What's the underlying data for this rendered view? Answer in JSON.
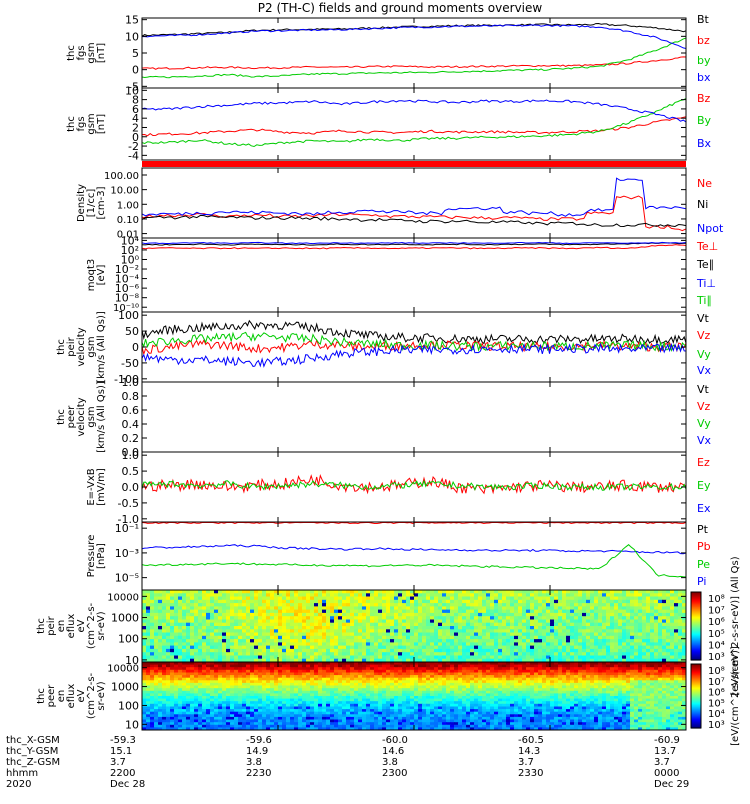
{
  "title": "P2 (TH-C) fields and ground moments overview",
  "panels": [
    {
      "id": "fgs_gsm",
      "ylabel": [
        "thc",
        "fgs",
        "gsm",
        "[nT]"
      ],
      "ticks": [
        "15",
        "10",
        "5",
        "0",
        "-5"
      ],
      "tick_values": [
        15,
        10,
        5,
        0,
        -5
      ],
      "ylim": [
        -5.5,
        15.5
      ],
      "scale": "linear",
      "legend": [
        {
          "label": "Bt",
          "color": "#000000"
        },
        {
          "label": "bz",
          "color": "#ff0000"
        },
        {
          "label": "by",
          "color": "#00cc00"
        },
        {
          "label": "bx",
          "color": "#0000ff"
        }
      ]
    },
    {
      "id": "fgs_gse",
      "ylabel": [
        "thc",
        "fgs",
        "gsm",
        "[nT]"
      ],
      "ticks": [
        "10",
        "8",
        "6",
        "4",
        "2",
        "0",
        "-2",
        "-4"
      ],
      "tick_values": [
        10,
        8,
        6,
        4,
        2,
        0,
        -2,
        -4
      ],
      "ylim": [
        -5,
        10.5
      ],
      "scale": "linear",
      "legend": [
        {
          "label": "Bz",
          "color": "#ff0000"
        },
        {
          "label": "By",
          "color": "#00cc00"
        },
        {
          "label": "Bx",
          "color": "#0000ff"
        }
      ]
    },
    {
      "id": "density",
      "ylabel": [
        "Density",
        "[1/cc]",
        "[cm-3]"
      ],
      "ticks": [
        "100.00",
        "10.00",
        "1.00",
        "0.10",
        "0.01"
      ],
      "tick_values": [
        100,
        10,
        1,
        0.1,
        0.01
      ],
      "ylim": [
        0.005,
        300
      ],
      "scale": "log",
      "legend": [
        {
          "label": "Ne",
          "color": "#ff0000"
        },
        {
          "label": "Ni",
          "color": "#000000"
        },
        {
          "label": "Npot",
          "color": "#0000ff"
        }
      ]
    },
    {
      "id": "temperature",
      "ylabel": [
        "moqt3",
        "[eV]"
      ],
      "ticks": [
        "10⁴",
        "10²",
        "10⁰",
        "10⁻²",
        "10⁻⁴",
        "10⁻⁶",
        "10⁻⁸",
        "10⁻¹⁰"
      ],
      "tick_values": [
        4,
        2,
        0,
        -2,
        -4,
        -6,
        -8,
        -10
      ],
      "ylim": [
        -11,
        4.5
      ],
      "scale": "log",
      "legend": [
        {
          "label": "Te⊥",
          "color": "#ff0000"
        },
        {
          "label": "Te∥",
          "color": "#000000"
        },
        {
          "label": "Ti⊥",
          "color": "#0000ff"
        },
        {
          "label": "Ti∥",
          "color": "#00cc00"
        }
      ]
    },
    {
      "id": "peir_velocity",
      "ylabel": [
        "thc",
        "peir",
        "velocity",
        "gsm",
        "[km/s (All Qs)]"
      ],
      "ticks": [
        "100",
        "50",
        "0",
        "-50",
        "-100"
      ],
      "tick_values": [
        100,
        50,
        0,
        -50,
        -100
      ],
      "ylim": [
        -110,
        110
      ],
      "scale": "linear",
      "legend": [
        {
          "label": "Vt",
          "color": "#000000"
        },
        {
          "label": "Vz",
          "color": "#ff0000"
        },
        {
          "label": "Vy",
          "color": "#00cc00"
        },
        {
          "label": "Vx",
          "color": "#0000ff"
        }
      ]
    },
    {
      "id": "peer_velocity",
      "ylabel": [
        "thc",
        "peer",
        "velocity",
        "gsm",
        "[km/s (All Qs)]"
      ],
      "ticks": [
        "1.0",
        "0.8",
        "0.6",
        "0.4",
        "0.2",
        "0.0"
      ],
      "tick_values": [
        1.0,
        0.8,
        0.6,
        0.4,
        0.2,
        0.0
      ],
      "ylim": [
        0,
        1.0
      ],
      "scale": "linear",
      "legend": [
        {
          "label": "Vt",
          "color": "#000000"
        },
        {
          "label": "Vz",
          "color": "#ff0000"
        },
        {
          "label": "Vy",
          "color": "#00cc00"
        },
        {
          "label": "Vx",
          "color": "#0000ff"
        }
      ]
    },
    {
      "id": "efield",
      "ylabel": [
        "E=-VxB",
        "[mV/m]"
      ],
      "ticks": [
        "1.0",
        "0.5",
        "0.0",
        "-0.5",
        "-1.0"
      ],
      "tick_values": [
        1.0,
        0.5,
        0.0,
        -0.5,
        -1.0
      ],
      "ylim": [
        -1.1,
        1.1
      ],
      "scale": "linear",
      "legend": [
        {
          "label": "Ez",
          "color": "#ff0000"
        },
        {
          "label": "Ey",
          "color": "#00cc00"
        },
        {
          "label": "Ex",
          "color": "#0000ff"
        }
      ]
    },
    {
      "id": "pressure",
      "ylabel": [
        "Pressure",
        "[nPa]"
      ],
      "ticks": [
        "10⁻¹",
        "10⁻³",
        "10⁻⁵"
      ],
      "tick_values": [
        -1,
        -3,
        -5
      ],
      "ylim": [
        -6,
        -0.5
      ],
      "scale": "log",
      "legend": [
        {
          "label": "Pt",
          "color": "#000000"
        },
        {
          "label": "Pb",
          "color": "#ff0000"
        },
        {
          "label": "Pe",
          "color": "#00cc00"
        },
        {
          "label": "Pi",
          "color": "#0000ff"
        }
      ]
    },
    {
      "id": "peir_eflux",
      "ylabel": [
        "thc",
        "peir",
        "en",
        "eflux",
        "eV",
        "(cm^2-s-",
        "sr-eV)"
      ],
      "ticks": [
        "10000",
        "1000",
        "100",
        "10"
      ],
      "tick_values": [
        4,
        3,
        2,
        1
      ],
      "ylim": [
        0.9,
        4.3
      ],
      "scale": "log"
    },
    {
      "id": "peer_eflux",
      "ylabel": [
        "thc",
        "peer",
        "en",
        "eflux",
        "eV",
        "(cm^2-s-",
        "sr-eV)"
      ],
      "ticks": [
        "10000",
        "1000",
        "100",
        "10"
      ],
      "tick_values": [
        4,
        3,
        2,
        1
      ],
      "ylim": [
        0.7,
        4.3
      ],
      "scale": "log"
    }
  ],
  "colorbar_top": {
    "ticks": [
      "10⁸",
      "10⁷",
      "10⁶",
      "10⁵",
      "10⁴",
      "10³"
    ],
    "label": "[eV/(cm^2-s-sr-eV)] (All Qs)"
  },
  "colorbar_bottom": {
    "ticks": [
      "10⁸",
      "10⁷",
      "10⁶",
      "10⁵",
      "10⁴",
      "10³"
    ],
    "label": "[eV/(cm^2-s-sr-eV)]"
  },
  "xaxis": {
    "row_labels": [
      "thc_X-GSM",
      "thc_Y-GSM",
      "thc_Z-GSM",
      "hhmm",
      "2020"
    ],
    "ticks": [
      {
        "x": "-59.3",
        "y": "15.1",
        "z": "3.7",
        "time": "2200",
        "date": "Dec 28"
      },
      {
        "x": "-59.6",
        "y": "14.9",
        "z": "3.8",
        "time": "2230",
        "date": ""
      },
      {
        "x": "-60.0",
        "y": "14.6",
        "z": "3.8",
        "time": "2300",
        "date": ""
      },
      {
        "x": "-60.5",
        "y": "14.3",
        "z": "3.7",
        "time": "2330",
        "date": ""
      },
      {
        "x": "-60.9",
        "y": "13.7",
        "z": "3.7",
        "time": "0000",
        "date": "Dec 29"
      }
    ]
  },
  "chart_data": {
    "type": "line",
    "title": "P2 (TH-C) fields and ground moments overview",
    "x_range": [
      "2200 Dec 28",
      "0000 Dec 29"
    ],
    "series": [
      {
        "panel": "fgs_gsm",
        "name": "Bt",
        "values": [
          10.3,
          10.5,
          10.8,
          11.2,
          11.8,
          12.0,
          12.1,
          12.2,
          12.5,
          12.8,
          13.0,
          13.2,
          13.3,
          13.4,
          13.5,
          13.4,
          13.6,
          13.2,
          12.5,
          11.5
        ]
      },
      {
        "panel": "fgs_gsm",
        "name": "bz",
        "values": [
          0.3,
          0.4,
          0.6,
          0.7,
          0.5,
          0.6,
          0.8,
          0.7,
          0.9,
          1.0,
          0.8,
          0.9,
          1.0,
          1.1,
          1.2,
          1.2,
          1.4,
          1.9,
          2.8,
          3.8
        ]
      },
      {
        "panel": "fgs_gsm",
        "name": "by",
        "values": [
          -2.3,
          -2.2,
          -1.9,
          -1.5,
          -2.1,
          -1.8,
          -1.3,
          -1.2,
          -1.0,
          -0.9,
          -0.8,
          -0.6,
          -0.4,
          -0.2,
          0.0,
          0.4,
          1.0,
          3.0,
          6.0,
          9.5
        ]
      },
      {
        "panel": "fgs_gsm",
        "name": "bx",
        "values": [
          10.0,
          10.2,
          10.5,
          11.0,
          11.6,
          11.7,
          11.9,
          12.0,
          12.3,
          12.6,
          12.8,
          13.0,
          13.1,
          13.2,
          13.3,
          13.1,
          12.8,
          11.5,
          9.5,
          6.5
        ]
      },
      {
        "panel": "fgs_gse",
        "name": "Bz",
        "values": [
          0.4,
          0.6,
          0.8,
          1.2,
          1.5,
          1.0,
          0.8,
          1.3,
          1.0,
          0.9,
          1.2,
          1.0,
          1.1,
          1.0,
          0.9,
          1.1,
          1.3,
          2.0,
          3.2,
          4.2
        ]
      },
      {
        "panel": "fgs_gse",
        "name": "By",
        "values": [
          -1.3,
          -1.2,
          -0.7,
          -1.5,
          -1.9,
          -1.2,
          -0.9,
          -1.1,
          -0.5,
          -0.8,
          -0.4,
          -0.3,
          -0.1,
          0.0,
          0.2,
          0.5,
          1.2,
          3.0,
          5.5,
          8.3
        ]
      },
      {
        "panel": "fgs_gse",
        "name": "Bx",
        "values": [
          5.9,
          6.0,
          6.5,
          6.8,
          7.2,
          7.3,
          7.6,
          7.0,
          7.5,
          7.8,
          7.6,
          7.4,
          7.7,
          7.6,
          7.8,
          7.6,
          7.0,
          6.0,
          4.8,
          3.2
        ]
      },
      {
        "panel": "density",
        "name": "Ne",
        "values": [
          0.15,
          0.18,
          0.2,
          0.16,
          0.18,
          0.15,
          0.17,
          0.2,
          0.18,
          0.15,
          0.14,
          0.13,
          0.12,
          0.12,
          0.1,
          0.1,
          0.25,
          3.0,
          0.03,
          0.02
        ]
      },
      {
        "panel": "density",
        "name": "Ni",
        "values": [
          0.12,
          0.13,
          0.14,
          0.13,
          0.12,
          0.12,
          0.11,
          0.1,
          0.09,
          0.08,
          0.07,
          0.07,
          0.06,
          0.06,
          0.05,
          0.05,
          0.04,
          0.04,
          0.04,
          0.04
        ]
      },
      {
        "panel": "density",
        "name": "Npot",
        "values": [
          0.2,
          0.22,
          0.25,
          0.3,
          0.28,
          0.25,
          0.22,
          0.3,
          0.35,
          0.3,
          0.25,
          0.5,
          0.55,
          0.3,
          0.25,
          0.2,
          0.4,
          50.0,
          0.6,
          0.6
        ]
      },
      {
        "panel": "peir_velocity",
        "name": "Vt",
        "values": [
          40,
          55,
          60,
          65,
          70,
          68,
          60,
          45,
          35,
          30,
          28,
          26,
          25,
          25,
          24,
          25,
          25,
          26,
          25,
          24
        ]
      },
      {
        "panel": "peir_velocity",
        "name": "Vz",
        "values": [
          -10,
          0,
          10,
          5,
          -5,
          0,
          10,
          5,
          0,
          5,
          8,
          5,
          3,
          2,
          0,
          3,
          5,
          2,
          0,
          2
        ]
      },
      {
        "panel": "peir_velocity",
        "name": "Vy",
        "values": [
          10,
          20,
          25,
          30,
          35,
          30,
          25,
          15,
          10,
          5,
          5,
          3,
          2,
          5,
          3,
          2,
          3,
          5,
          2,
          3
        ]
      },
      {
        "panel": "peir_velocity",
        "name": "Vx",
        "values": [
          -30,
          -40,
          -40,
          -45,
          -50,
          -45,
          -35,
          -20,
          -15,
          -10,
          -10,
          -8,
          -6,
          -5,
          -8,
          -5,
          -6,
          -8,
          -5,
          -6
        ]
      },
      {
        "panel": "efield",
        "name": "Ez",
        "values": [
          0.02,
          0.05,
          0.1,
          0.0,
          0.05,
          0.1,
          0.25,
          0.05,
          0.0,
          0.05,
          0.2,
          0.0,
          -0.1,
          0.0,
          0.05,
          0.0,
          0.0,
          0.05,
          0.0,
          0.0
        ]
      },
      {
        "panel": "efield",
        "name": "Ey",
        "values": [
          0.05,
          0.1,
          0.05,
          0.1,
          0.0,
          0.05,
          0.1,
          0.05,
          0.0,
          0.05,
          0.1,
          0.05,
          0.0,
          0.0,
          0.05,
          0.0,
          0.0,
          0.0,
          0.0,
          0.0
        ]
      },
      {
        "panel": "pressure",
        "name": "Pi",
        "values": [
          -2.6,
          -2.55,
          -2.5,
          -2.4,
          -2.45,
          -2.6,
          -2.65,
          -2.7,
          -2.65,
          -2.7,
          -2.75,
          -2.75,
          -2.8,
          -2.8,
          -2.8,
          -2.85,
          -2.85,
          -2.9,
          -2.95,
          -3.0
        ]
      },
      {
        "panel": "pressure",
        "name": "Pe",
        "values": [
          -4.0,
          -3.95,
          -3.9,
          -3.85,
          -3.9,
          -3.95,
          -4.0,
          -4.0,
          -4.05,
          -4.0,
          -4.0,
          -4.05,
          -4.1,
          -4.15,
          -4.2,
          -4.25,
          -4.3,
          -2.3,
          -4.8,
          -4.9
        ]
      },
      {
        "panel": "pressure",
        "name": "Pb",
        "values": [
          -0.55,
          -0.55,
          -0.55,
          -0.55,
          -0.55,
          -0.55,
          -0.55,
          -0.55,
          -0.55,
          -0.55,
          -0.55,
          -0.55,
          -0.55,
          -0.55,
          -0.55,
          -0.55,
          -0.55,
          -0.55,
          -0.55,
          -0.55
        ]
      }
    ]
  }
}
